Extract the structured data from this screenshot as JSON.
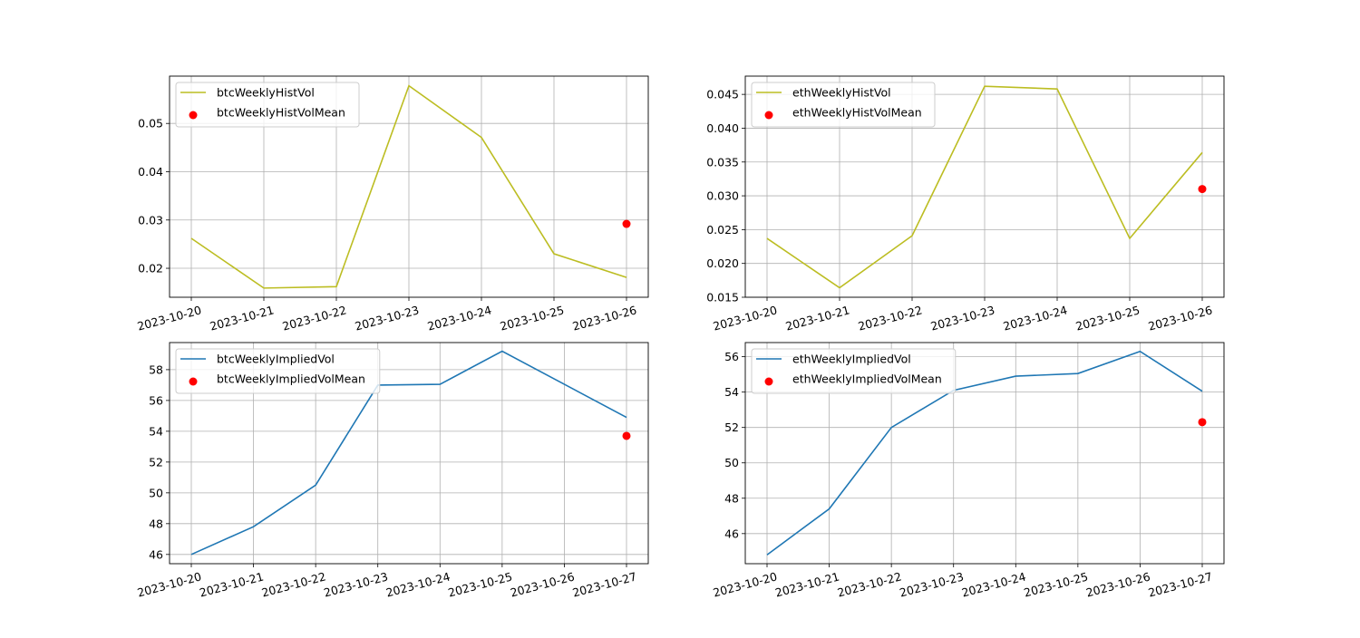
{
  "chart_data": [
    {
      "type": "line",
      "x": [
        "2023-10-20",
        "2023-10-21",
        "2023-10-22",
        "2023-10-23",
        "2023-10-24",
        "2023-10-25",
        "2023-10-26"
      ],
      "xticks": [
        "2023-10-20",
        "2023-10-21",
        "2023-10-22",
        "2023-10-23",
        "2023-10-24",
        "2023-10-25",
        "2023-10-26"
      ],
      "yticks": [
        0.02,
        0.03,
        0.04,
        0.05
      ],
      "ytick_labels": [
        "0.02",
        "0.03",
        "0.04",
        "0.05"
      ],
      "ylim": [
        0.014,
        0.0598
      ],
      "grid": true,
      "legend": "top-left",
      "series": [
        {
          "name": "btcWeeklyHistVol",
          "kind": "line",
          "color": "#bcbd22",
          "values": [
            0.0262,
            0.0159,
            0.0162,
            0.0578,
            0.0471,
            0.023,
            0.0181
          ]
        },
        {
          "name": "btcWeeklyHistVolMean",
          "kind": "scatter",
          "color": "#ff0000",
          "points": [
            {
              "x": "2023-10-26",
              "y": 0.0292
            }
          ]
        }
      ]
    },
    {
      "type": "line",
      "x": [
        "2023-10-20",
        "2023-10-21",
        "2023-10-22",
        "2023-10-23",
        "2023-10-24",
        "2023-10-25",
        "2023-10-26"
      ],
      "xticks": [
        "2023-10-20",
        "2023-10-21",
        "2023-10-22",
        "2023-10-23",
        "2023-10-24",
        "2023-10-25",
        "2023-10-26"
      ],
      "yticks": [
        0.015,
        0.02,
        0.025,
        0.03,
        0.035,
        0.04,
        0.045
      ],
      "ytick_labels": [
        "0.015",
        "0.020",
        "0.025",
        "0.030",
        "0.035",
        "0.040",
        "0.045"
      ],
      "ylim": [
        0.015,
        0.0477
      ],
      "grid": true,
      "legend": "top-left",
      "series": [
        {
          "name": "ethWeeklyHistVol",
          "kind": "line",
          "color": "#bcbd22",
          "values": [
            0.0237,
            0.0164,
            0.0241,
            0.0462,
            0.0458,
            0.0237,
            0.0364
          ]
        },
        {
          "name": "ethWeeklyHistVolMean",
          "kind": "scatter",
          "color": "#ff0000",
          "points": [
            {
              "x": "2023-10-26",
              "y": 0.031
            }
          ]
        }
      ]
    },
    {
      "type": "line",
      "x": [
        "2023-10-20",
        "2023-10-21",
        "2023-10-22",
        "2023-10-23",
        "2023-10-24",
        "2023-10-25",
        "2023-10-27"
      ],
      "xticks": [
        "2023-10-20",
        "2023-10-21",
        "2023-10-22",
        "2023-10-23",
        "2023-10-24",
        "2023-10-25",
        "2023-10-26",
        "2023-10-27"
      ],
      "yticks": [
        46,
        48,
        50,
        52,
        54,
        56,
        58
      ],
      "ytick_labels": [
        "46",
        "48",
        "50",
        "52",
        "54",
        "56",
        "58"
      ],
      "ylim": [
        45.4,
        59.76
      ],
      "grid": true,
      "legend": "top-left",
      "series": [
        {
          "name": "btcWeeklyImpliedVol",
          "kind": "line",
          "color": "#1f77b4",
          "values": [
            46.0,
            47.8,
            50.5,
            57.0,
            57.05,
            59.2,
            54.9
          ]
        },
        {
          "name": "btcWeeklyImpliedVolMean",
          "kind": "scatter",
          "color": "#ff0000",
          "points": [
            {
              "x": "2023-10-27",
              "y": 53.7
            }
          ]
        }
      ]
    },
    {
      "type": "line",
      "x": [
        "2023-10-20",
        "2023-10-21",
        "2023-10-22",
        "2023-10-23",
        "2023-10-24",
        "2023-10-25",
        "2023-10-26",
        "2023-10-27"
      ],
      "xticks": [
        "2023-10-20",
        "2023-10-21",
        "2023-10-22",
        "2023-10-23",
        "2023-10-24",
        "2023-10-25",
        "2023-10-26",
        "2023-10-27"
      ],
      "yticks": [
        46,
        48,
        50,
        52,
        54,
        56
      ],
      "ytick_labels": [
        "46",
        "48",
        "50",
        "52",
        "54",
        "56"
      ],
      "ylim": [
        44.3,
        56.8
      ],
      "grid": true,
      "legend": "top-left",
      "series": [
        {
          "name": "ethWeeklyImpliedVol",
          "kind": "line",
          "color": "#1f77b4",
          "values": [
            44.8,
            47.4,
            52.0,
            54.1,
            54.9,
            55.05,
            56.3,
            54.05
          ]
        },
        {
          "name": "ethWeeklyImpliedVolMean",
          "kind": "scatter",
          "color": "#ff0000",
          "points": [
            {
              "x": "2023-10-27",
              "y": 52.3
            }
          ]
        }
      ]
    }
  ]
}
